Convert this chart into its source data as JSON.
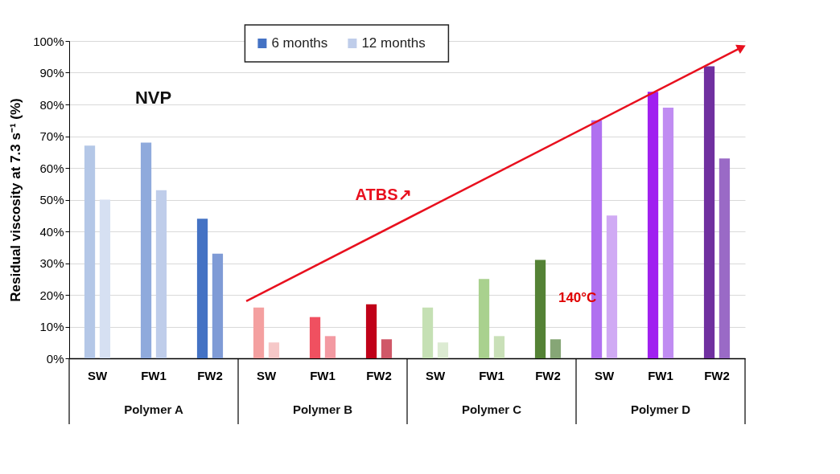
{
  "chart_data": {
    "type": "bar",
    "ylabel": "Residual viscosity at 7.3 s⁻¹ (%)",
    "categories": [
      "SW",
      "FW1",
      "FW2",
      "SW",
      "FW1",
      "FW2",
      "SW",
      "FW1",
      "FW2",
      "SW",
      "FW1",
      "FW2"
    ],
    "series": [
      {
        "name": "6 months",
        "color": "#4472c4",
        "colors": [
          "#b4c7e7",
          "#8faadc",
          "#4472c4",
          "#f4a0a0",
          "#f05060",
          "#c00018",
          "#c5e0b4",
          "#a9d18e",
          "#548235",
          "#b070f0",
          "#a020f0",
          "#7030a0"
        ],
        "values": [
          67,
          68,
          44,
          16,
          13,
          17,
          16,
          25,
          31,
          75,
          84,
          92
        ]
      },
      {
        "name": "12 months",
        "color": "#bfcdea",
        "colors": [
          "#d6e0f2",
          "#bfcdea",
          "#7f9bd6",
          "#f6c8c8",
          "#f39aa2",
          "#d05868",
          "#dcebd2",
          "#c9e0b8",
          "#86a676",
          "#d0aaf4",
          "#c08cf2",
          "#9a6ac6"
        ],
        "values": [
          50,
          53,
          33,
          5,
          7,
          6,
          5,
          7,
          6,
          45,
          79,
          63
        ]
      }
    ],
    "ylim": [
      0,
      100
    ],
    "yticks": [
      {
        "value": 0,
        "label": "0%"
      },
      {
        "value": 10,
        "label": "10%"
      },
      {
        "value": 20,
        "label": "20%"
      },
      {
        "value": 30,
        "label": "30%"
      },
      {
        "value": 40,
        "label": "40%"
      },
      {
        "value": 50,
        "label": "50%"
      },
      {
        "value": 60,
        "label": "60%"
      },
      {
        "value": 70,
        "label": "70%"
      },
      {
        "value": 80,
        "label": "80%"
      },
      {
        "value": 90,
        "label": "90%"
      },
      {
        "value": 100,
        "label": "100%"
      }
    ],
    "grid": "y",
    "legend": "top",
    "annotations": [
      "NVP",
      "ATBS↗",
      "140°C",
      "Polymer A",
      "Polymer B",
      "Polymer C",
      "Polymer D"
    ]
  }
}
